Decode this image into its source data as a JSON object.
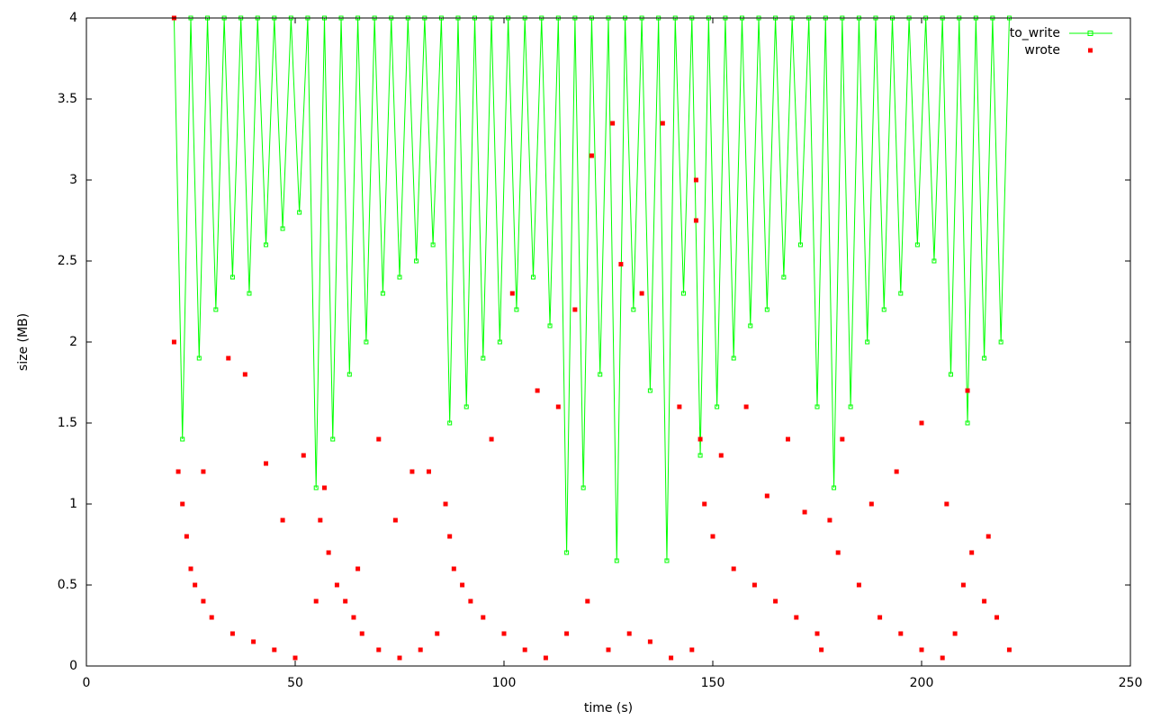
{
  "chart_data": {
    "type": "line_scatter",
    "xlabel": "time (s)",
    "ylabel": "size (MB)",
    "xlim": [
      0,
      250
    ],
    "xticks": [
      0,
      50,
      100,
      150,
      200,
      250
    ],
    "ylim": [
      0,
      4
    ],
    "yticks": [
      0,
      0.5,
      1,
      1.5,
      2,
      2.5,
      3,
      3.5,
      4
    ],
    "legend": "top-right",
    "series": [
      {
        "name": "to_write",
        "color": "#00ff00",
        "kind": "line",
        "x": [
          21,
          23,
          25,
          27,
          29,
          31,
          33,
          35,
          37,
          39,
          41,
          43,
          45,
          47,
          49,
          51,
          53,
          55,
          57,
          59,
          61,
          63,
          65,
          67,
          69,
          71,
          73,
          75,
          77,
          79,
          81,
          83,
          85,
          87,
          89,
          91,
          93,
          95,
          97,
          99,
          101,
          103,
          105,
          107,
          109,
          111,
          113,
          115,
          117,
          119,
          121,
          123,
          125,
          127,
          129,
          131,
          133,
          135,
          137,
          139,
          141,
          143,
          145,
          147,
          149,
          151,
          153,
          155,
          157,
          159,
          161,
          163,
          165,
          167,
          169,
          171,
          173,
          175,
          177,
          179,
          181,
          183,
          185,
          187,
          189,
          191,
          193,
          195,
          197,
          199,
          201,
          203,
          205,
          207,
          209,
          211,
          213,
          215,
          217,
          219,
          221
        ],
        "values": [
          4,
          1.4,
          4,
          1.9,
          4,
          2.2,
          4,
          2.4,
          4,
          2.3,
          4,
          2.6,
          4,
          2.7,
          4,
          2.8,
          4,
          1.1,
          4,
          1.4,
          4,
          1.8,
          4,
          2.0,
          4,
          2.3,
          4,
          2.4,
          4,
          2.5,
          4,
          2.6,
          4,
          1.5,
          4,
          1.6,
          4,
          1.9,
          4,
          2.0,
          4,
          2.2,
          4,
          2.4,
          4,
          2.1,
          4,
          0.7,
          4,
          1.1,
          4,
          1.8,
          4,
          0.65,
          4,
          2.2,
          4,
          1.7,
          4,
          0.65,
          4,
          2.3,
          4,
          1.3,
          4,
          1.6,
          4,
          1.9,
          4,
          2.1,
          4,
          2.2,
          4,
          2.4,
          4,
          2.6,
          4,
          1.6,
          4,
          1.1,
          4,
          1.6,
          4,
          2.0,
          4,
          2.2,
          4,
          2.3,
          4,
          2.6,
          4,
          2.5,
          4,
          1.8,
          4,
          1.5,
          4,
          1.9,
          4,
          2.0,
          4
        ]
      },
      {
        "name": "wrote",
        "color": "#ff0000",
        "kind": "points",
        "x": [
          21,
          21,
          22,
          23,
          24,
          25,
          26,
          28,
          30,
          35,
          40,
          45,
          50,
          55,
          56,
          57,
          58,
          60,
          62,
          64,
          66,
          70,
          75,
          80,
          84,
          86,
          87,
          88,
          90,
          92,
          95,
          100,
          105,
          110,
          115,
          120,
          125,
          130,
          135,
          140,
          145,
          146,
          147,
          148,
          150,
          155,
          160,
          165,
          170,
          175,
          176,
          178,
          180,
          185,
          190,
          195,
          200,
          205,
          208,
          210,
          212,
          215,
          218,
          221,
          28,
          34,
          38,
          43,
          47,
          52,
          65,
          70,
          74,
          78,
          82,
          97,
          102,
          108,
          113,
          117,
          121,
          126,
          128,
          133,
          138,
          142,
          146,
          152,
          158,
          163,
          168,
          172,
          181,
          188,
          194,
          200,
          206,
          211,
          216
        ],
        "values": [
          4,
          2,
          1.2,
          1.0,
          0.8,
          0.6,
          0.5,
          0.4,
          0.3,
          0.2,
          0.15,
          0.1,
          0.05,
          0.4,
          0.9,
          1.1,
          0.7,
          0.5,
          0.4,
          0.3,
          0.2,
          0.1,
          0.05,
          0.1,
          0.2,
          1.0,
          0.8,
          0.6,
          0.5,
          0.4,
          0.3,
          0.2,
          0.1,
          0.05,
          0.2,
          0.4,
          0.1,
          0.2,
          0.15,
          0.05,
          0.1,
          3.0,
          1.4,
          1.0,
          0.8,
          0.6,
          0.5,
          0.4,
          0.3,
          0.2,
          0.1,
          0.9,
          0.7,
          0.5,
          0.3,
          0.2,
          0.1,
          0.05,
          0.2,
          0.5,
          0.7,
          0.4,
          0.3,
          0.1,
          1.2,
          1.9,
          1.8,
          1.25,
          0.9,
          1.3,
          0.6,
          1.4,
          0.9,
          1.2,
          1.2,
          1.4,
          2.3,
          1.7,
          1.6,
          2.2,
          3.15,
          3.35,
          2.48,
          2.3,
          3.35,
          1.6,
          2.75,
          1.3,
          1.6,
          1.05,
          1.4,
          0.95,
          1.4,
          1.0,
          1.2,
          1.5,
          1.0,
          1.7,
          0.8
        ]
      }
    ]
  }
}
